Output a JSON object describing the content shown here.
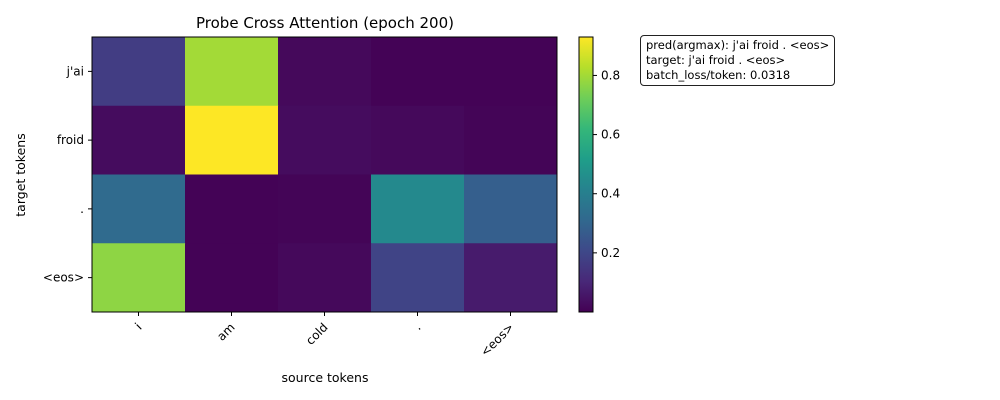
{
  "chart_data": {
    "type": "heatmap",
    "title": "Probe Cross Attention (epoch 200)",
    "xlabel": "source tokens",
    "ylabel": "target tokens",
    "x_categories": [
      "i",
      "am",
      "cold",
      ".",
      "<eos>"
    ],
    "y_categories": [
      "j'ai",
      "froid",
      ".",
      "<eos>"
    ],
    "values": [
      [
        0.17,
        0.8,
        0.02,
        0.005,
        0.005
      ],
      [
        0.03,
        0.93,
        0.03,
        0.02,
        0.01
      ],
      [
        0.32,
        0.005,
        0.01,
        0.44,
        0.28
      ],
      [
        0.77,
        0.005,
        0.02,
        0.19,
        0.07
      ]
    ],
    "colorbar": {
      "min": 0.0,
      "max": 0.93,
      "ticks": [
        0.2,
        0.4,
        0.6,
        0.8
      ],
      "colormap": "viridis"
    }
  },
  "info": {
    "pred": "pred(argmax): j'ai froid . <eos>",
    "target": "target: j'ai froid . <eos>",
    "loss": "batch_loss/token: 0.0318"
  }
}
